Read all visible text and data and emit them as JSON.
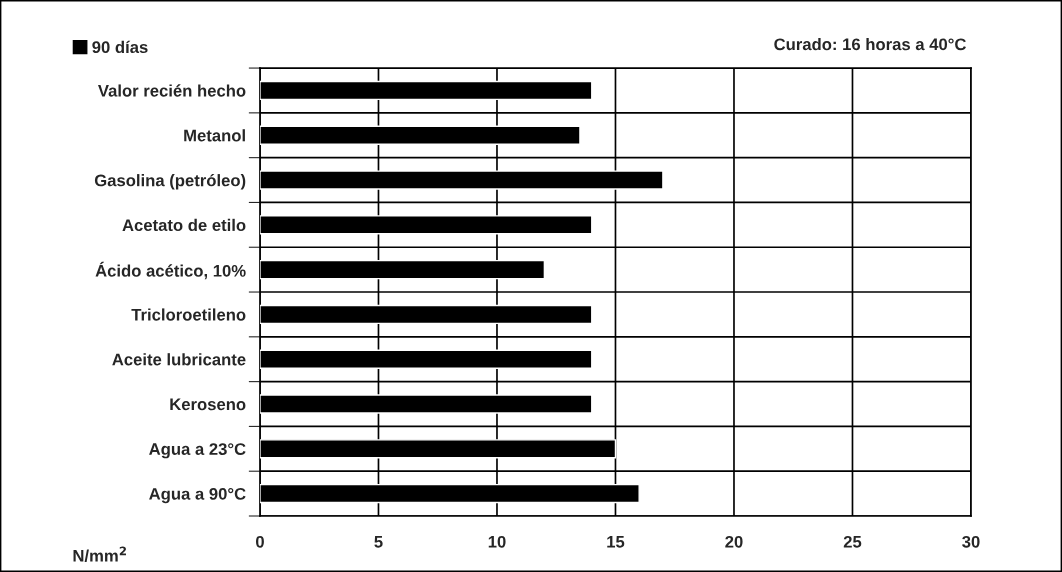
{
  "chart_data": {
    "type": "bar",
    "orientation": "horizontal",
    "categories": [
      "Valor recién hecho",
      "Metanol",
      "Gasolina (petróleo)",
      "Acetato de etilo",
      "Ácido acético, 10%",
      "Tricloroetileno",
      "Aceite lubricante",
      "Keroseno",
      "Agua a 23°C",
      "Agua a 90°C"
    ],
    "series": [
      {
        "name": "90 días",
        "color": "#000000",
        "values": [
          14,
          13.5,
          17,
          14,
          12,
          14,
          14,
          14,
          15,
          16
        ]
      }
    ],
    "xlabel": "N/mm$^{2}$",
    "xlim": [
      0,
      30
    ],
    "xticks": [
      0,
      5,
      10,
      15,
      20,
      25,
      30
    ],
    "grid": true,
    "legend": "top left",
    "annotations": [
      "Curado: 16 horas a 40°C"
    ]
  }
}
